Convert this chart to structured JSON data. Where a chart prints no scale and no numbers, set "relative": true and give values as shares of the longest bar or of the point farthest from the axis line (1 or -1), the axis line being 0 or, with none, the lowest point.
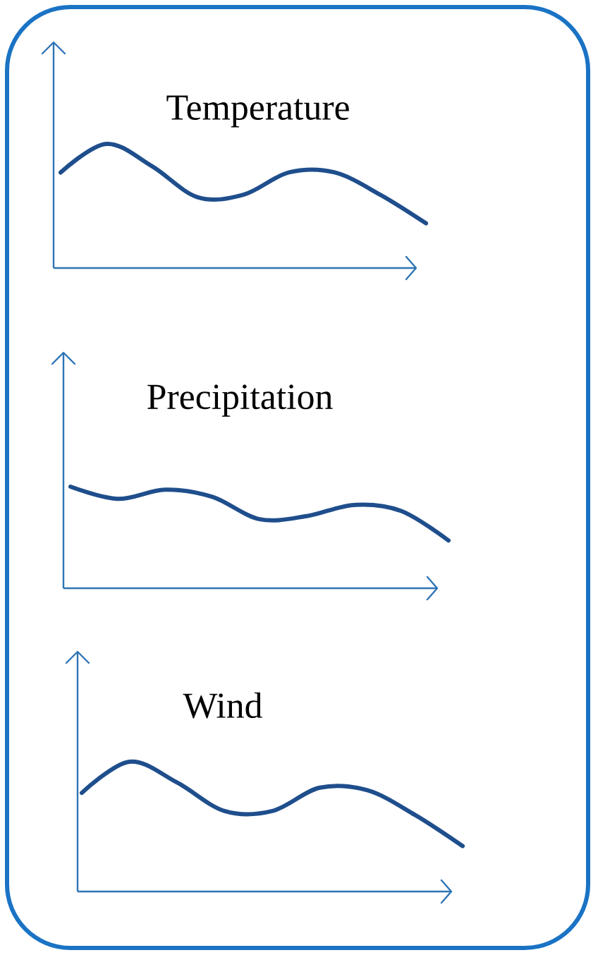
{
  "chart_data": [
    {
      "type": "line",
      "title": "Temperature",
      "categories": [
        null,
        null,
        null,
        null,
        null,
        null,
        null,
        null,
        null
      ],
      "values": [
        0.77,
        1,
        0.82,
        0.57,
        0.59,
        0.77,
        0.77,
        0.59,
        0.36
      ],
      "color": "#1f4e8c",
      "relative": true
    },
    {
      "type": "line",
      "title": "Precipitation",
      "categories": [
        null,
        null,
        null,
        null,
        null,
        null,
        null,
        null,
        null
      ],
      "values": [
        1,
        0.88,
        0.97,
        0.9,
        0.68,
        0.71,
        0.82,
        0.76,
        0.47
      ],
      "color": "#1f4e8c",
      "relative": true
    },
    {
      "type": "line",
      "title": "Wind",
      "categories": [
        null,
        null,
        null,
        null,
        null,
        null,
        null,
        null,
        null
      ],
      "values": [
        0.76,
        1,
        0.84,
        0.62,
        0.62,
        0.8,
        0.78,
        0.59,
        0.35
      ],
      "color": "#1f4e8c",
      "relative": true
    }
  ]
}
